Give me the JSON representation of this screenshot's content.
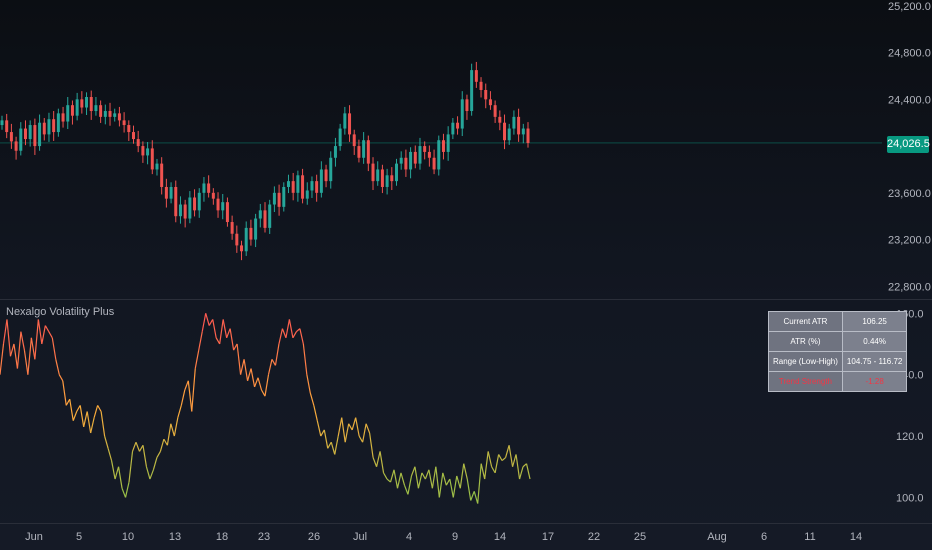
{
  "indicator_title": "Nexalgo Volatility Plus",
  "current_price_label": "24,026.5",
  "colors": {
    "up": "#26a69a",
    "down": "#ef5350",
    "price_tag": "#089981",
    "atr_low": "#8bc34a",
    "atr_high": "#ff5252"
  },
  "atr_table": [
    {
      "label": "Current ATR",
      "value": "106.25"
    },
    {
      "label": "ATR (%)",
      "value": "0.44%"
    },
    {
      "label": "Range (Low-High)",
      "value": "104.75 - 116.72"
    },
    {
      "label": "Trend Strength",
      "value": "-1.28"
    }
  ],
  "x_axis_labels": [
    "Jun",
    "5",
    "10",
    "13",
    "18",
    "23",
    "26",
    "Jul",
    "4",
    "9",
    "14",
    "17",
    "22",
    "25",
    "Aug",
    "6",
    "11",
    "14"
  ],
  "chart_data": [
    {
      "type": "candlestick",
      "title": "",
      "y_ticks": [
        "25,200.0",
        "24,800.0",
        "24,400.0",
        "24,026.5",
        "23,600.0",
        "23,200.0",
        "22,800.0"
      ],
      "ylim": [
        22700,
        25250
      ],
      "last_value": 24026.5,
      "close": [
        24220,
        24120,
        24040,
        23960,
        24150,
        24060,
        24180,
        24000,
        24200,
        24100,
        24230,
        24120,
        24280,
        24210,
        24350,
        24260,
        24400,
        24330,
        24420,
        24300,
        24350,
        24250,
        24300,
        24250,
        24280,
        24220,
        24180,
        24120,
        24060,
        24000,
        23920,
        23980,
        23800,
        23850,
        23650,
        23550,
        23650,
        23400,
        23500,
        23380,
        23560,
        23450,
        23600,
        23680,
        23600,
        23550,
        23450,
        23520,
        23350,
        23250,
        23150,
        23100,
        23300,
        23200,
        23380,
        23450,
        23300,
        23500,
        23600,
        23480,
        23650,
        23700,
        23600,
        23750,
        23550,
        23620,
        23700,
        23600,
        23800,
        23700,
        23900,
        24000,
        24150,
        24280,
        24100,
        24000,
        23900,
        24050,
        23850,
        23700,
        23800,
        23650,
        23750,
        23700,
        23850,
        23900,
        23800,
        23950,
        23850,
        24000,
        23950,
        23900,
        23800,
        24050,
        23950,
        24100,
        24200,
        24150,
        24400,
        24300,
        24650,
        24550,
        24480,
        24400,
        24350,
        24250,
        24200,
        24050,
        24150,
        24250,
        24100,
        24150,
        24026.5
      ],
      "open": [
        24180,
        24220,
        24120,
        24040,
        23960,
        24150,
        24060,
        24180,
        24000,
        24200,
        24100,
        24230,
        24120,
        24280,
        24210,
        24350,
        24260,
        24400,
        24330,
        24420,
        24300,
        24350,
        24250,
        24300,
        24250,
        24280,
        24220,
        24180,
        24120,
        24060,
        24000,
        23920,
        23980,
        23800,
        23850,
        23650,
        23550,
        23650,
        23400,
        23500,
        23380,
        23560,
        23450,
        23600,
        23680,
        23600,
        23550,
        23450,
        23520,
        23350,
        23250,
        23150,
        23100,
        23300,
        23200,
        23380,
        23450,
        23300,
        23500,
        23600,
        23480,
        23650,
        23700,
        23600,
        23750,
        23550,
        23620,
        23700,
        23600,
        23800,
        23700,
        23900,
        24000,
        24150,
        24280,
        24100,
        24000,
        23900,
        24050,
        23850,
        23700,
        23800,
        23650,
        23750,
        23700,
        23850,
        23900,
        23800,
        23950,
        23850,
        24000,
        23950,
        23900,
        23800,
        24050,
        23950,
        24100,
        24200,
        24150,
        24400,
        24300,
        24650,
        24550,
        24480,
        24400,
        24350,
        24250,
        24200,
        24050,
        24150,
        24250,
        24100,
        24150
      ]
    },
    {
      "type": "line",
      "title": "Nexalgo Volatility Plus",
      "y_ticks": [
        "160.0",
        "140.0",
        "120.0",
        "100.0"
      ],
      "ylim": [
        92,
        164
      ],
      "values": [
        140,
        150,
        158,
        146,
        150,
        142,
        154,
        148,
        140,
        152,
        145,
        158,
        150,
        156,
        154,
        152,
        145,
        140,
        138,
        130,
        132,
        125,
        128,
        130,
        123,
        128,
        121,
        126,
        130,
        128,
        120,
        116,
        112,
        106,
        110,
        103,
        100,
        105,
        115,
        118,
        115,
        117,
        110,
        106,
        109,
        113,
        115,
        119,
        117,
        124,
        120,
        126,
        130,
        135,
        138,
        128,
        142,
        148,
        154,
        160,
        156,
        158,
        152,
        150,
        158,
        152,
        155,
        148,
        150,
        140,
        145,
        138,
        142,
        136,
        139,
        135,
        133,
        140,
        145,
        143,
        150,
        155,
        152,
        158,
        152,
        154,
        155,
        150,
        140,
        134,
        130,
        125,
        120,
        122,
        116,
        118,
        114,
        120,
        126,
        118,
        124,
        122,
        126,
        120,
        118,
        124,
        121,
        113,
        110,
        115,
        108,
        106,
        105,
        109,
        103,
        108,
        104,
        101,
        107,
        110,
        103,
        108,
        106,
        109,
        103,
        110,
        100,
        108,
        104,
        106,
        100,
        107,
        103,
        111,
        106,
        99,
        102,
        98,
        111,
        106,
        115,
        110,
        108,
        114,
        112,
        113,
        117,
        110,
        114,
        106,
        110,
        111,
        106
      ]
    }
  ]
}
